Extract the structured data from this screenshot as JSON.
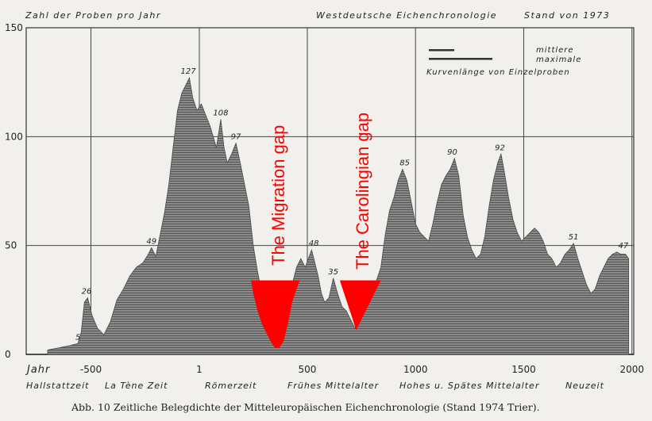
{
  "header": {
    "left": "Zahl der Proben pro Jahr",
    "center": "Westdeutsche Eichenchronologie",
    "right": "Stand von 1973"
  },
  "legend": {
    "line1": "mittlere",
    "line2": "maximale",
    "line3": "Kurvenlänge von Einzelproben"
  },
  "annotations": {
    "migration_gap": "The Migration gap",
    "carolingian_gap": "The Carolingian gap",
    "highlight_color": "#ff0000"
  },
  "caption": "Abb. 10   Zeitliche Belegdichte der Mitteleuropäischen Eichenchronologie (Stand 1974 Trier).",
  "chart_data": {
    "type": "area",
    "xlabel": "Jahr",
    "ylabel": "",
    "xlim": [
      -700,
      2000
    ],
    "ylim": [
      0,
      150
    ],
    "x_ticks": [
      "-500",
      "1",
      "500",
      "1000",
      "1500",
      "2000"
    ],
    "y_ticks": [
      "150",
      "100",
      "50",
      "0"
    ],
    "grid": true,
    "legend_position": "top-right",
    "periods": [
      "Hallstattzeit",
      "La Tène Zeit",
      "Römerzeit",
      "Frühes Mittelalter",
      "Hohes u. Spätes Mittelalter",
      "Neuzeit"
    ],
    "peak_labels": [
      {
        "x": -560,
        "y": 5,
        "label": "5"
      },
      {
        "x": -520,
        "y": 26,
        "label": "26"
      },
      {
        "x": -220,
        "y": 49,
        "label": "49"
      },
      {
        "x": -50,
        "y": 127,
        "label": "127"
      },
      {
        "x": 100,
        "y": 108,
        "label": "108"
      },
      {
        "x": 170,
        "y": 97,
        "label": "97"
      },
      {
        "x": 530,
        "y": 48,
        "label": "48"
      },
      {
        "x": 620,
        "y": 35,
        "label": "35"
      },
      {
        "x": 950,
        "y": 85,
        "label": "85"
      },
      {
        "x": 1170,
        "y": 90,
        "label": "90"
      },
      {
        "x": 1390,
        "y": 92,
        "label": "92"
      },
      {
        "x": 1730,
        "y": 51,
        "label": "51"
      },
      {
        "x": 1960,
        "y": 47,
        "label": "47"
      }
    ],
    "series": [
      {
        "values": [
          [
            -700,
            2
          ],
          [
            -650,
            3
          ],
          [
            -600,
            4
          ],
          [
            -560,
            5
          ],
          [
            -545,
            10
          ],
          [
            -530,
            24
          ],
          [
            -515,
            26
          ],
          [
            -495,
            18
          ],
          [
            -470,
            12
          ],
          [
            -440,
            9
          ],
          [
            -410,
            15
          ],
          [
            -380,
            25
          ],
          [
            -350,
            30
          ],
          [
            -320,
            36
          ],
          [
            -290,
            40
          ],
          [
            -260,
            42
          ],
          [
            -235,
            46
          ],
          [
            -220,
            49
          ],
          [
            -200,
            45
          ],
          [
            -180,
            55
          ],
          [
            -160,
            65
          ],
          [
            -140,
            78
          ],
          [
            -120,
            95
          ],
          [
            -100,
            112
          ],
          [
            -80,
            120
          ],
          [
            -60,
            124
          ],
          [
            -45,
            127
          ],
          [
            -30,
            118
          ],
          [
            -10,
            112
          ],
          [
            10,
            115
          ],
          [
            30,
            110
          ],
          [
            50,
            105
          ],
          [
            80,
            95
          ],
          [
            100,
            108
          ],
          [
            115,
            95
          ],
          [
            130,
            88
          ],
          [
            150,
            92
          ],
          [
            170,
            97
          ],
          [
            190,
            88
          ],
          [
            210,
            78
          ],
          [
            230,
            68
          ],
          [
            250,
            50
          ],
          [
            270,
            38
          ],
          [
            290,
            28
          ],
          [
            310,
            18
          ],
          [
            330,
            10
          ],
          [
            350,
            4
          ],
          [
            370,
            3
          ],
          [
            390,
            8
          ],
          [
            410,
            20
          ],
          [
            430,
            32
          ],
          [
            450,
            40
          ],
          [
            470,
            44
          ],
          [
            490,
            40
          ],
          [
            505,
            44
          ],
          [
            520,
            48
          ],
          [
            535,
            42
          ],
          [
            550,
            36
          ],
          [
            565,
            28
          ],
          [
            580,
            24
          ],
          [
            600,
            26
          ],
          [
            620,
            35
          ],
          [
            640,
            28
          ],
          [
            660,
            22
          ],
          [
            680,
            20
          ],
          [
            700,
            16
          ],
          [
            720,
            12
          ],
          [
            740,
            14
          ],
          [
            760,
            20
          ],
          [
            780,
            26
          ],
          [
            800,
            30
          ],
          [
            820,
            34
          ],
          [
            840,
            40
          ],
          [
            860,
            55
          ],
          [
            880,
            66
          ],
          [
            900,
            72
          ],
          [
            920,
            80
          ],
          [
            940,
            85
          ],
          [
            960,
            80
          ],
          [
            980,
            70
          ],
          [
            1000,
            60
          ],
          [
            1020,
            56
          ],
          [
            1040,
            54
          ],
          [
            1060,
            52
          ],
          [
            1080,
            60
          ],
          [
            1100,
            70
          ],
          [
            1120,
            78
          ],
          [
            1140,
            82
          ],
          [
            1160,
            85
          ],
          [
            1180,
            90
          ],
          [
            1200,
            82
          ],
          [
            1220,
            64
          ],
          [
            1240,
            54
          ],
          [
            1260,
            48
          ],
          [
            1280,
            44
          ],
          [
            1300,
            46
          ],
          [
            1320,
            54
          ],
          [
            1340,
            68
          ],
          [
            1360,
            80
          ],
          [
            1380,
            88
          ],
          [
            1395,
            92
          ],
          [
            1410,
            84
          ],
          [
            1430,
            72
          ],
          [
            1450,
            62
          ],
          [
            1470,
            56
          ],
          [
            1490,
            52
          ],
          [
            1510,
            54
          ],
          [
            1530,
            56
          ],
          [
            1550,
            58
          ],
          [
            1570,
            56
          ],
          [
            1590,
            52
          ],
          [
            1610,
            46
          ],
          [
            1630,
            44
          ],
          [
            1650,
            40
          ],
          [
            1670,
            42
          ],
          [
            1690,
            46
          ],
          [
            1710,
            48
          ],
          [
            1730,
            51
          ],
          [
            1750,
            44
          ],
          [
            1770,
            38
          ],
          [
            1790,
            32
          ],
          [
            1810,
            28
          ],
          [
            1830,
            30
          ],
          [
            1850,
            36
          ],
          [
            1870,
            40
          ],
          [
            1890,
            44
          ],
          [
            1910,
            46
          ],
          [
            1930,
            47
          ],
          [
            1950,
            46
          ],
          [
            1970,
            46
          ],
          [
            1985,
            44
          ]
        ]
      }
    ],
    "highlighted_gaps": [
      {
        "label": "The Migration gap",
        "x_range": [
          240,
          480
        ],
        "top": 34,
        "bottom_values": [
          [
            240,
            34
          ],
          [
            250,
            28
          ],
          [
            270,
            20
          ],
          [
            290,
            14
          ],
          [
            310,
            10
          ],
          [
            330,
            6
          ],
          [
            350,
            3
          ],
          [
            370,
            3
          ],
          [
            390,
            6
          ],
          [
            410,
            14
          ],
          [
            430,
            24
          ],
          [
            450,
            30
          ],
          [
            465,
            34
          ]
        ]
      },
      {
        "label": "The Carolingian gap",
        "x_range": [
          650,
          850
        ],
        "top": 34,
        "bottom_values": [
          [
            650,
            34
          ],
          [
            670,
            28
          ],
          [
            690,
            22
          ],
          [
            710,
            16
          ],
          [
            725,
            11
          ],
          [
            740,
            14
          ],
          [
            760,
            18
          ],
          [
            780,
            22
          ],
          [
            800,
            26
          ],
          [
            820,
            30
          ],
          [
            840,
            34
          ]
        ]
      }
    ]
  }
}
